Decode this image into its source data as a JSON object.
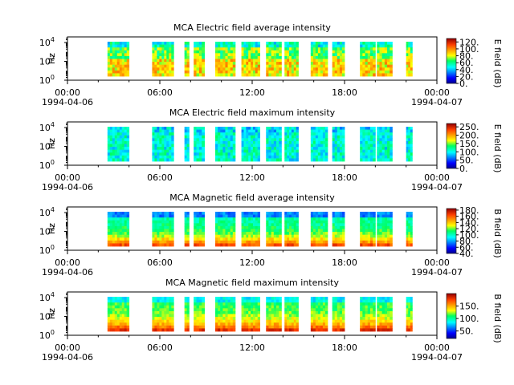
{
  "chart_data": [
    {
      "type": "heatmap",
      "title": "MCA  Electric field average intensity",
      "ylabel": "Hz",
      "colorbar_label": "E field (dB)",
      "colorbar_ticks": [
        "0.",
        "20.",
        "40.",
        "60.",
        "80.",
        "100.",
        "120."
      ],
      "clim": [
        0,
        130
      ],
      "y_ticks": [
        {
          "base": "10",
          "exp": "0"
        },
        {
          "base": "10",
          "exp": "2"
        },
        {
          "base": "10",
          "exp": "4"
        }
      ],
      "x_ticks": [
        {
          "time": "00:00",
          "date": "1994-04-06"
        },
        {
          "time": "06:00",
          "date": ""
        },
        {
          "time": "12:00",
          "date": ""
        },
        {
          "time": "18:00",
          "date": ""
        },
        {
          "time": "00:00",
          "date": "1994-04-07"
        }
      ],
      "x_range_hours": [
        0,
        24
      ]
    },
    {
      "type": "heatmap",
      "title": "MCA  Electric field maximum intensity",
      "ylabel": "Hz",
      "colorbar_label": "E field (dB)",
      "colorbar_ticks": [
        "0.",
        "50.",
        "100.",
        "150.",
        "200.",
        "250."
      ],
      "clim": [
        0,
        270
      ],
      "y_ticks": [
        {
          "base": "10",
          "exp": "0"
        },
        {
          "base": "10",
          "exp": "2"
        },
        {
          "base": "10",
          "exp": "4"
        }
      ],
      "x_ticks": [
        {
          "time": "00:00",
          "date": "1994-04-06"
        },
        {
          "time": "06:00",
          "date": ""
        },
        {
          "time": "12:00",
          "date": ""
        },
        {
          "time": "18:00",
          "date": ""
        },
        {
          "time": "00:00",
          "date": "1994-04-07"
        }
      ],
      "x_range_hours": [
        0,
        24
      ]
    },
    {
      "type": "heatmap",
      "title": "MCA  Magnetic field average intensity",
      "ylabel": "Hz",
      "colorbar_label": "B field (dB)",
      "colorbar_ticks": [
        "40.",
        "60.",
        "80.",
        "100.",
        "120.",
        "140.",
        "160.",
        "180."
      ],
      "clim": [
        40,
        185
      ],
      "y_ticks": [
        {
          "base": "10",
          "exp": "0"
        },
        {
          "base": "10",
          "exp": "2"
        },
        {
          "base": "10",
          "exp": "4"
        }
      ],
      "x_ticks": [
        {
          "time": "00:00",
          "date": "1994-04-06"
        },
        {
          "time": "06:00",
          "date": ""
        },
        {
          "time": "12:00",
          "date": ""
        },
        {
          "time": "18:00",
          "date": ""
        },
        {
          "time": "00:00",
          "date": "1994-04-07"
        }
      ],
      "x_range_hours": [
        0,
        24
      ]
    },
    {
      "type": "heatmap",
      "title": "MCA  Magnetic field maximum intensity",
      "ylabel": "Hz",
      "colorbar_label": "B field (dB)",
      "colorbar_ticks": [
        "50.",
        "100.",
        "150."
      ],
      "clim": [
        20,
        200
      ],
      "y_ticks": [
        {
          "base": "10",
          "exp": "0"
        },
        {
          "base": "10",
          "exp": "2"
        },
        {
          "base": "10",
          "exp": "4"
        }
      ],
      "x_ticks": [
        {
          "time": "00:00",
          "date": "1994-04-06"
        },
        {
          "time": "06:00",
          "date": ""
        },
        {
          "time": "12:00",
          "date": ""
        },
        {
          "time": "18:00",
          "date": ""
        },
        {
          "time": "00:00",
          "date": "1994-04-07"
        }
      ],
      "x_range_hours": [
        0,
        24
      ]
    }
  ],
  "data_intervals_hours": [
    [
      2.6,
      4.0
    ],
    [
      5.5,
      6.9
    ],
    [
      7.6,
      7.9
    ],
    [
      8.2,
      8.9
    ],
    [
      9.6,
      10.9
    ],
    [
      11.3,
      12.5
    ],
    [
      12.9,
      13.9
    ],
    [
      14.1,
      15.0
    ],
    [
      15.8,
      16.9
    ],
    [
      17.2,
      18.0
    ],
    [
      19.0,
      20.0
    ],
    [
      20.1,
      21.1
    ],
    [
      22.0,
      22.4
    ]
  ]
}
